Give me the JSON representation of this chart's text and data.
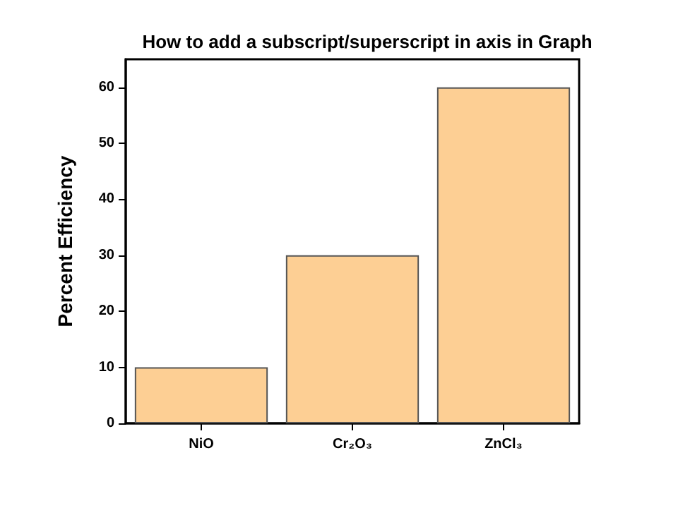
{
  "chart_data": {
    "type": "bar",
    "title": "How to add a subscript/superscript in axis in Graph",
    "ylabel": "Percent Efficiency",
    "categories": [
      "NiO",
      "Cr₂O₃",
      "ZnCl₃"
    ],
    "values": [
      10,
      30,
      60
    ],
    "color": "#fdcf94",
    "ylim": [
      0,
      65
    ],
    "yticks": [
      0,
      10,
      20,
      30,
      40,
      50,
      60
    ],
    "grid": false
  }
}
